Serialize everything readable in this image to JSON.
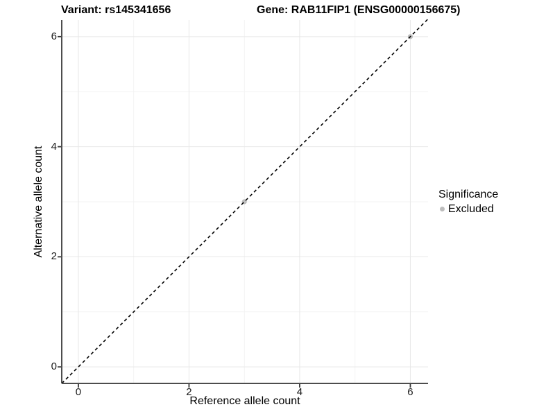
{
  "titles": {
    "variant": "Variant: rs145341656",
    "gene": "Gene: RAB11FIP1 (ENSG00000156675)"
  },
  "chart_data": {
    "type": "scatter",
    "xlabel": "Reference allele count",
    "ylabel": "Alternative allele count",
    "xlim": [
      -0.3,
      6.32
    ],
    "ylim": [
      -0.3,
      6.3
    ],
    "x_ticks": [
      0,
      2,
      4,
      6
    ],
    "y_ticks": [
      0,
      2,
      4,
      6
    ],
    "x_tick_labels": [
      "0",
      "2",
      "4",
      "6"
    ],
    "y_tick_labels": [
      "0",
      "2",
      "4",
      "6"
    ],
    "x_minor_ticks": [
      1,
      3,
      5
    ],
    "y_minor_ticks": [
      1,
      3,
      5
    ],
    "grid": "major and minor, light gray on white",
    "identity_line": {
      "style": "dashed",
      "color": "#000000",
      "from": [
        -0.3,
        -0.3
      ],
      "to": [
        6.32,
        6.32
      ],
      "meaning": "y = x reference line"
    },
    "series": [
      {
        "name": "Excluded",
        "color": "#bdbdbd",
        "points": [
          [
            3,
            3
          ],
          [
            6,
            6
          ]
        ]
      }
    ],
    "legend": {
      "title": "Significance",
      "position": "right",
      "entries": [
        {
          "label": "Excluded",
          "color": "#bdbdbd"
        }
      ]
    }
  },
  "colors": {
    "background": "#ffffff",
    "axis_line": "#4d4d4d",
    "tick_mark": "#333333",
    "major_grid": "#e7e7e7",
    "minor_grid": "#f3f3f3",
    "tick_text": "#1a1a1a",
    "point_gray": "#bdbdbd"
  }
}
